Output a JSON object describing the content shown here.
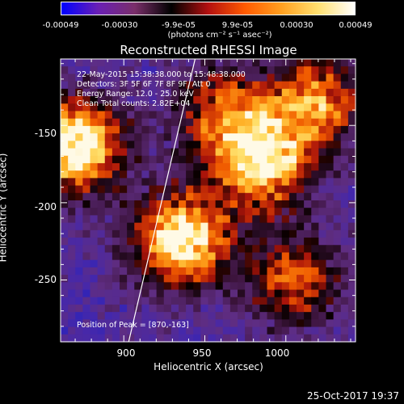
{
  "colorbar": {
    "ticks": [
      "-0.00049",
      "-0.00030",
      "-9.9e-05",
      "9.9e-05",
      "0.00030",
      "0.00049"
    ],
    "units": "(photons cm⁻² s⁻¹ asec⁻²)",
    "colors": [
      "#0000ff",
      "#6a1fb5",
      "#7a2f6a",
      "#000000",
      "#b31010",
      "#ff5a00",
      "#ffa020",
      "#ffe070",
      "#ffffff"
    ]
  },
  "chart_data": {
    "type": "heatmap",
    "title": "Reconstructed RHESSI Image",
    "xlabel": "Heliocentric X (arcsec)",
    "ylabel": "Heliocentric Y (arcsec)",
    "xlim": [
      861,
      1043
    ],
    "ylim": [
      -290,
      -107
    ],
    "xticks": [
      "900",
      "950",
      "1000"
    ],
    "yticks": [
      "-150",
      "-200",
      "-250"
    ],
    "limb_line": [
      [
        903,
        -290
      ],
      [
        944,
        -107
      ]
    ],
    "bright_regions": [
      {
        "x": 870,
        "y": -163,
        "level": 1.0
      },
      {
        "x": 935,
        "y": -225,
        "level": 0.95
      },
      {
        "x": 985,
        "y": -175,
        "level": 0.85
      },
      {
        "x": 1020,
        "y": -135,
        "level": 0.7
      },
      {
        "x": 1005,
        "y": -250,
        "level": 0.6
      },
      {
        "x": 960,
        "y": -140,
        "level": 0.55
      }
    ],
    "annotations": [
      "22-May-2015 15:38:38.000 to 15:48:38.000",
      "Detectors: 3F 5F 6F 7F 8F 9F, Att 0",
      "Energy Range: 12.0 - 25.0 keV",
      "Clean     Total counts: 2.82E+04",
      "Position of Peak = [870,-163]"
    ]
  },
  "footer": {
    "date": "25-Oct-2017 19:37"
  }
}
